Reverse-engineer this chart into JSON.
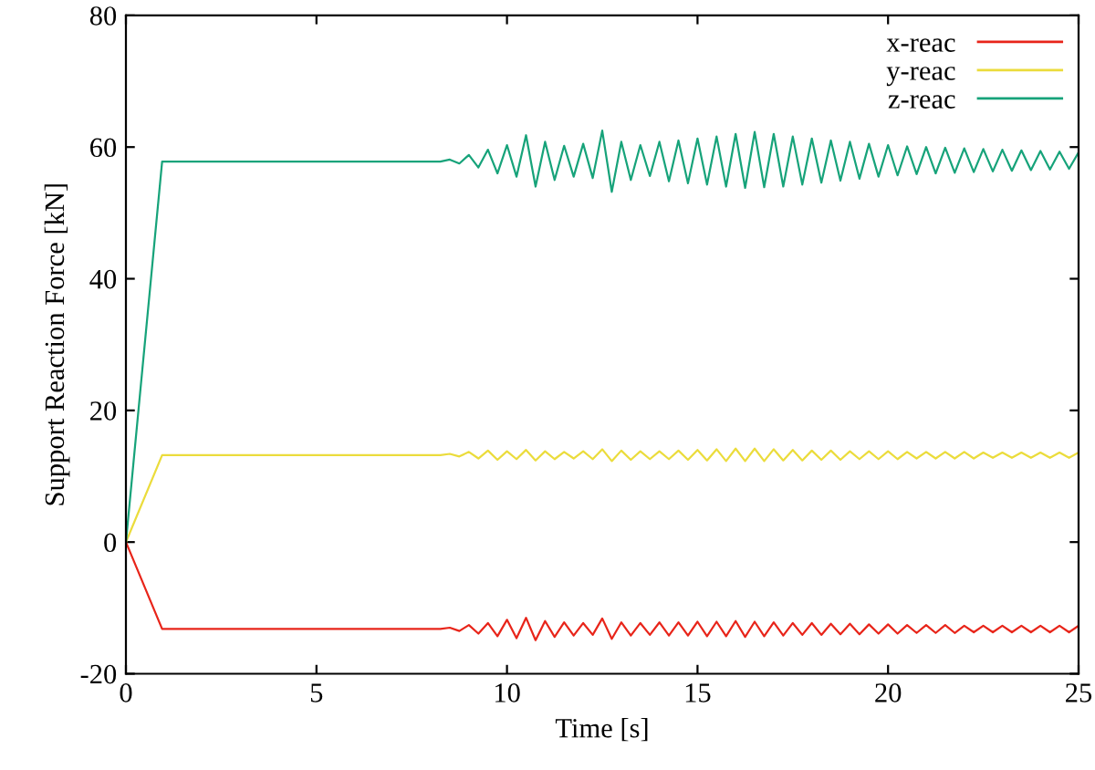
{
  "chart_data": {
    "type": "line",
    "xlabel": "Time [s]",
    "ylabel": "Support Reaction Force [kN]",
    "xlim": [
      0,
      25
    ],
    "ylim": [
      -20,
      80
    ],
    "xticks": [
      0,
      5,
      10,
      15,
      20,
      25
    ],
    "yticks": [
      -20,
      0,
      20,
      40,
      60,
      80
    ],
    "grid": false,
    "legend": "top right",
    "marker": "none",
    "line_style": "solid",
    "x": [
      0,
      0.95,
      8.25,
      8.5,
      8.75,
      9.0,
      9.25,
      9.5,
      9.75,
      10.0,
      10.25,
      10.5,
      10.75,
      11.0,
      11.25,
      11.5,
      11.75,
      12.0,
      12.25,
      12.5,
      12.75,
      13.0,
      13.25,
      13.5,
      13.75,
      14.0,
      14.25,
      14.5,
      14.75,
      15.0,
      15.25,
      15.5,
      15.75,
      16.0,
      16.25,
      16.5,
      16.75,
      17.0,
      17.25,
      17.5,
      17.75,
      18.0,
      18.25,
      18.5,
      18.75,
      19.0,
      19.25,
      19.5,
      19.75,
      20.0,
      20.25,
      20.5,
      20.75,
      21.0,
      21.25,
      21.5,
      21.75,
      22.0,
      22.25,
      22.5,
      22.75,
      23.0,
      23.25,
      23.5,
      23.75,
      24.0,
      24.25,
      24.5,
      24.75,
      25.0
    ],
    "series": [
      {
        "name": "x-reac",
        "color": "#e8251a",
        "values": [
          0,
          -13.2,
          -13.2,
          -13.0,
          -13.5,
          -12.6,
          -13.9,
          -12.3,
          -14.3,
          -11.8,
          -14.6,
          -11.5,
          -14.9,
          -12.0,
          -14.4,
          -12.2,
          -14.2,
          -12.3,
          -14.1,
          -11.6,
          -14.7,
          -12.2,
          -14.2,
          -12.3,
          -14.1,
          -12.2,
          -14.2,
          -12.2,
          -14.2,
          -12.1,
          -14.3,
          -12.1,
          -14.3,
          -12.0,
          -14.4,
          -12.1,
          -14.3,
          -12.2,
          -14.2,
          -12.3,
          -14.1,
          -12.3,
          -14.1,
          -12.4,
          -14.0,
          -12.4,
          -14.0,
          -12.5,
          -13.9,
          -12.5,
          -13.9,
          -12.6,
          -13.8,
          -12.6,
          -13.8,
          -12.6,
          -13.8,
          -12.7,
          -13.7,
          -12.7,
          -13.7,
          -12.7,
          -13.7,
          -12.7,
          -13.7,
          -12.7,
          -13.7,
          -12.7,
          -13.7,
          -12.7
        ]
      },
      {
        "name": "y-reac",
        "color": "#ebdc3c",
        "values": [
          0,
          13.2,
          13.2,
          13.4,
          13.0,
          13.7,
          12.7,
          13.9,
          12.5,
          13.8,
          12.6,
          14.0,
          12.4,
          13.8,
          12.6,
          13.7,
          12.7,
          13.8,
          12.6,
          14.1,
          12.3,
          13.9,
          12.5,
          13.8,
          12.6,
          13.8,
          12.6,
          13.9,
          12.5,
          14.0,
          12.4,
          14.1,
          12.3,
          14.2,
          12.3,
          14.2,
          12.3,
          14.1,
          12.4,
          14.0,
          12.4,
          13.9,
          12.5,
          13.9,
          12.5,
          13.8,
          12.6,
          13.8,
          12.6,
          13.8,
          12.6,
          13.7,
          12.7,
          13.7,
          12.7,
          13.7,
          12.7,
          13.7,
          12.7,
          13.6,
          12.8,
          13.6,
          12.8,
          13.6,
          12.8,
          13.6,
          12.8,
          13.6,
          12.8,
          13.6
        ]
      },
      {
        "name": "z-reac",
        "color": "#17a37a",
        "values": [
          0,
          57.8,
          57.8,
          58.1,
          57.5,
          58.8,
          56.9,
          59.6,
          56.0,
          60.3,
          55.5,
          61.8,
          54.0,
          60.8,
          55.0,
          60.2,
          55.5,
          60.5,
          55.3,
          62.5,
          53.2,
          60.8,
          55.0,
          60.3,
          55.6,
          60.8,
          54.8,
          61.0,
          54.5,
          61.3,
          54.3,
          61.6,
          54.0,
          62.0,
          53.8,
          62.3,
          53.9,
          62.0,
          54.0,
          61.6,
          54.3,
          61.3,
          54.6,
          61.0,
          54.9,
          60.8,
          55.2,
          60.5,
          55.5,
          60.3,
          55.7,
          60.1,
          55.9,
          60.0,
          56.0,
          59.9,
          56.1,
          59.8,
          56.2,
          59.7,
          56.3,
          59.6,
          56.4,
          59.5,
          56.5,
          59.4,
          56.6,
          59.3,
          56.7,
          59.2
        ]
      }
    ]
  }
}
